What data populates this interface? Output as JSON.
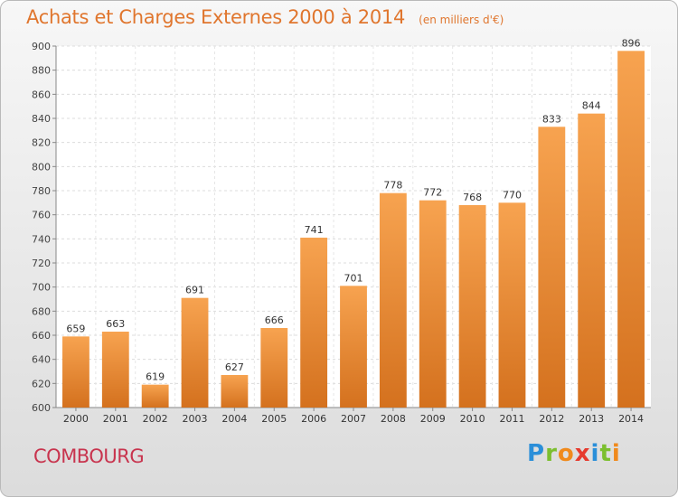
{
  "chart_data": {
    "type": "bar",
    "title": "Achats et Charges Externes 2000 à 2014",
    "subtitle": "(en milliers d'€)",
    "categories": [
      "2000",
      "2001",
      "2002",
      "2003",
      "2004",
      "2005",
      "2006",
      "2007",
      "2008",
      "2009",
      "2010",
      "2011",
      "2012",
      "2013",
      "2014"
    ],
    "values": [
      659,
      663,
      619,
      691,
      627,
      666,
      741,
      701,
      778,
      772,
      768,
      770,
      833,
      844,
      896
    ],
    "ylim": [
      600,
      900
    ],
    "yticks": [
      600,
      620,
      640,
      660,
      680,
      700,
      720,
      740,
      760,
      780,
      800,
      820,
      840,
      860,
      880,
      900
    ],
    "xlabel": "",
    "ylabel": "",
    "grid": true,
    "colors": {
      "bar_top": "#f7a350",
      "bar_bottom": "#d4711e",
      "title": "#e0762e"
    }
  },
  "footer": {
    "city": "COMBOURG",
    "brand_letters": [
      {
        "ch": "P",
        "color": "#2b8fd9"
      },
      {
        "ch": "r",
        "color": "#7cbf2f"
      },
      {
        "ch": "o",
        "color": "#f08a1c"
      },
      {
        "ch": "x",
        "color": "#e63a2e"
      },
      {
        "ch": "i",
        "color": "#2b8fd9"
      },
      {
        "ch": "t",
        "color": "#7cbf2f"
      },
      {
        "ch": "i",
        "color": "#f08a1c"
      }
    ]
  }
}
